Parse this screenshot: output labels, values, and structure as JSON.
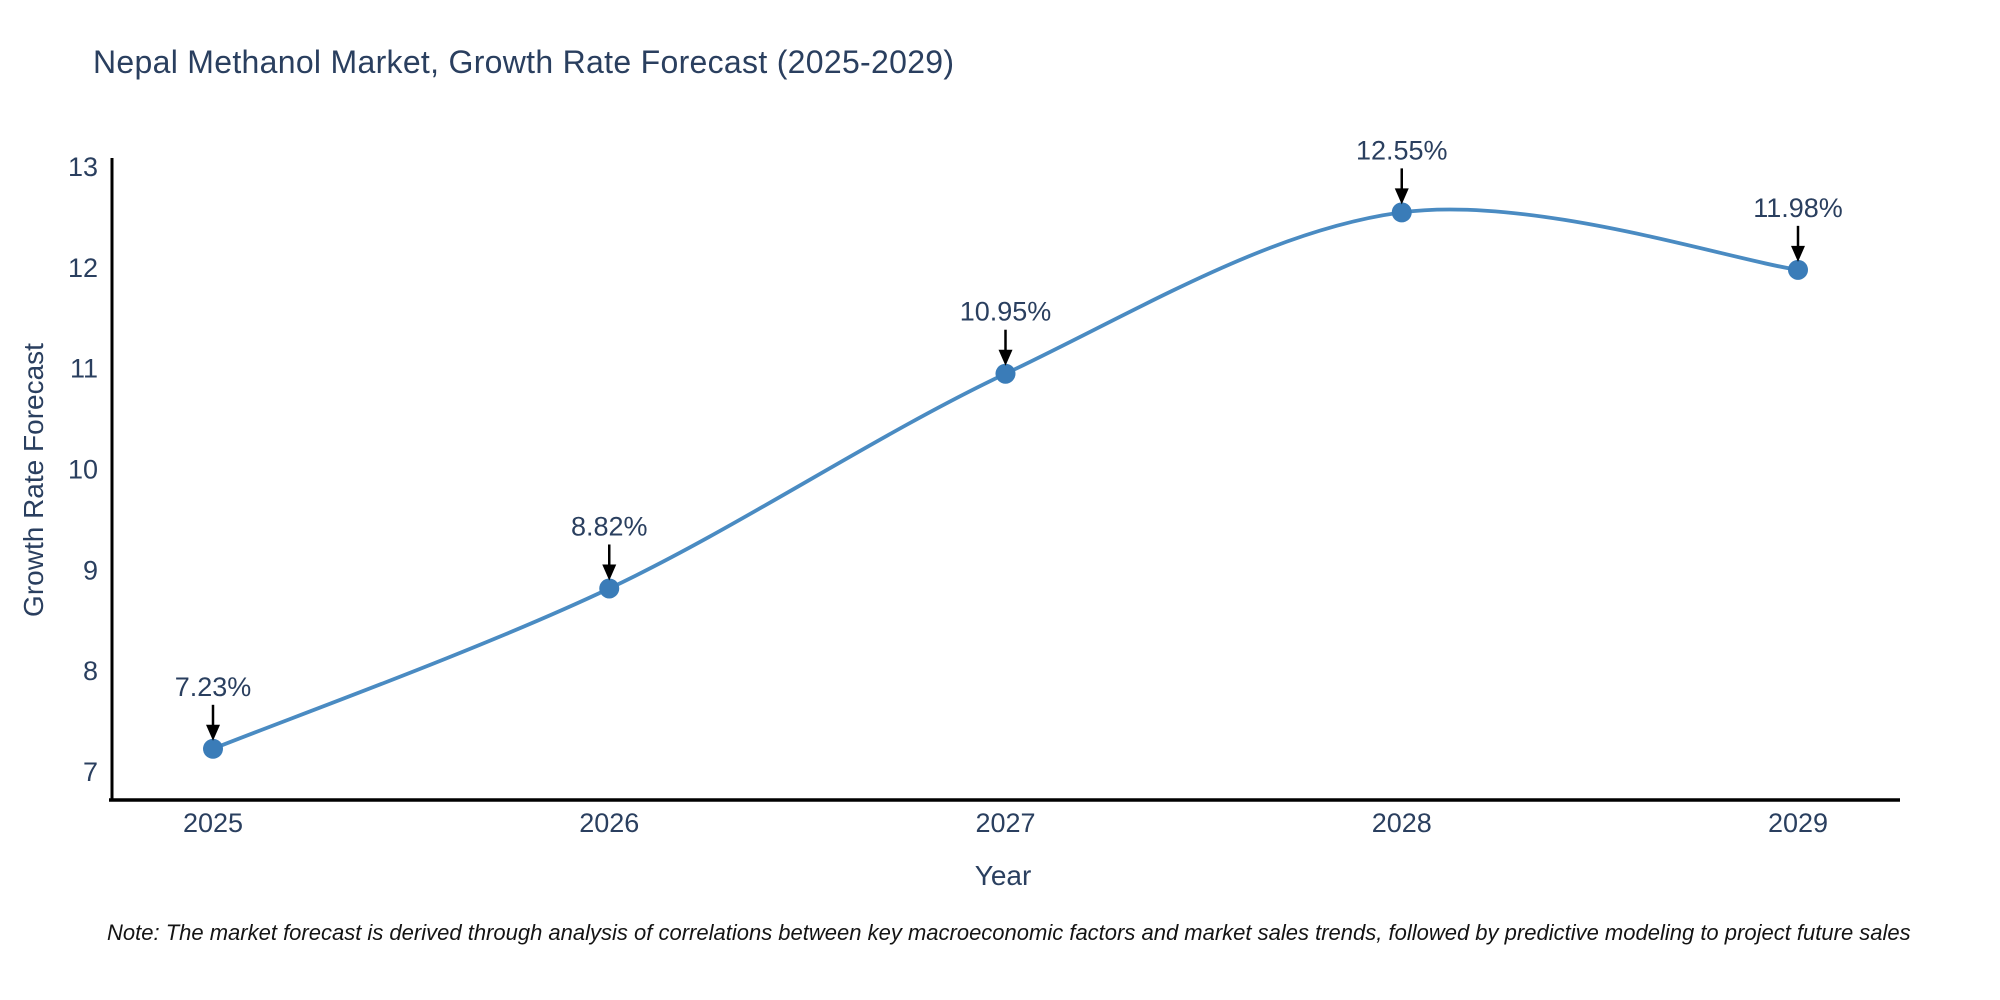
{
  "chart_data": {
    "type": "line",
    "title": "Nepal Methanol Market, Growth Rate Forecast (2025-2029)",
    "xlabel": "Year",
    "ylabel": "Growth Rate Forecast",
    "categories": [
      "2025",
      "2026",
      "2027",
      "2028",
      "2029"
    ],
    "values": [
      7.23,
      8.82,
      10.95,
      12.55,
      11.98
    ],
    "point_labels": [
      "7.23%",
      "8.82%",
      "10.95%",
      "12.55%",
      "11.98%"
    ],
    "yticks": [
      "7",
      "8",
      "9",
      "10",
      "11",
      "12",
      "13"
    ],
    "ylim": [
      7,
      13
    ],
    "line_shape": "spline",
    "grid": false,
    "legend": "none",
    "footnote": "Note: The market forecast is derived through analysis of correlations between key macroeconomic factors and market sales trends, followed by predictive modeling to project future sales",
    "colors": {
      "line": "#4a8bc2",
      "marker": "#3a7cb8",
      "text": "#2a3f5f",
      "axis": "#000000",
      "arrow": "#000000",
      "background": "#ffffff"
    }
  }
}
